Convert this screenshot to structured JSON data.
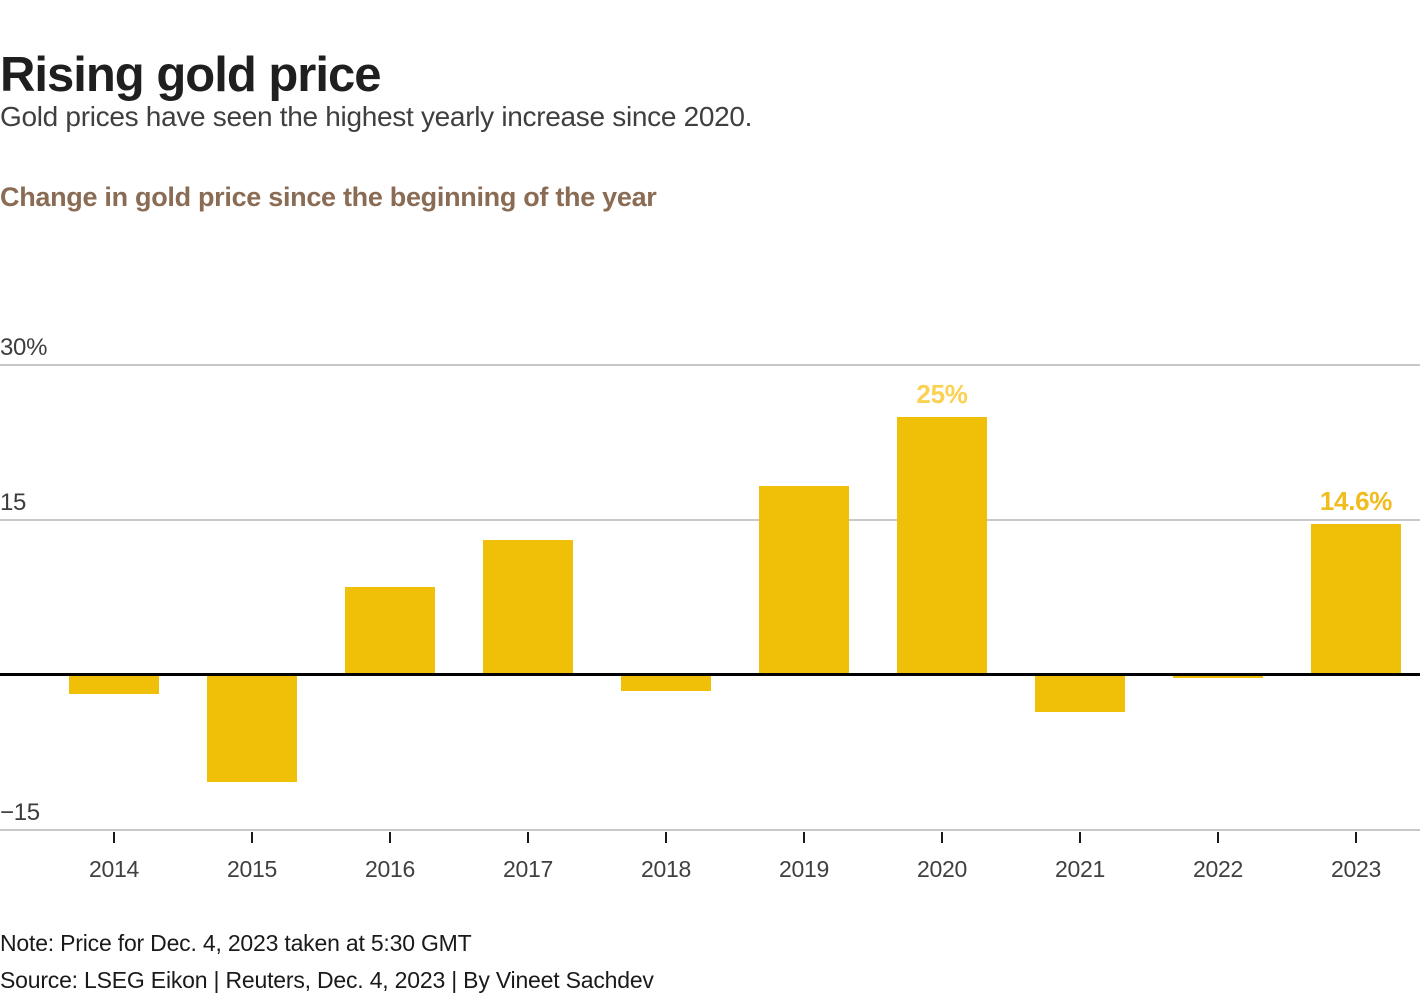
{
  "header": {
    "title": "Rising gold price",
    "subtitle": "Gold prices have seen the highest yearly increase since 2020.",
    "section_heading": "Change in gold price since the beginning of the year"
  },
  "chart_data": {
    "type": "bar",
    "title": "Change in gold price since the beginning of the year",
    "categories": [
      "2014",
      "2015",
      "2016",
      "2017",
      "2018",
      "2019",
      "2020",
      "2021",
      "2022",
      "2023"
    ],
    "values": [
      -1.8,
      -10.4,
      8.5,
      13.1,
      -1.5,
      18.3,
      25,
      -3.6,
      -0.3,
      14.6
    ],
    "unit": "%",
    "xlabel": "",
    "ylabel": "",
    "ylim": [
      -17,
      30
    ],
    "grid": "horizontal",
    "legend": "none",
    "bar_color": "#F0C008",
    "yticks": [
      {
        "value": 30,
        "label": "30%"
      },
      {
        "value": 15,
        "label": "15"
      },
      {
        "value": -15,
        "label": "−15"
      }
    ],
    "annotations": [
      {
        "category": "2020",
        "text": "25%",
        "color": "#FAD150"
      },
      {
        "category": "2023",
        "text": "14.6%",
        "color": "#F0BC1E"
      }
    ]
  },
  "footer": {
    "note": "Note: Price for Dec. 4, 2023 taken at 5:30 GMT",
    "source": "Source: LSEG Eikon | Reuters, Dec. 4, 2023 | By Vineet Sachdev"
  }
}
